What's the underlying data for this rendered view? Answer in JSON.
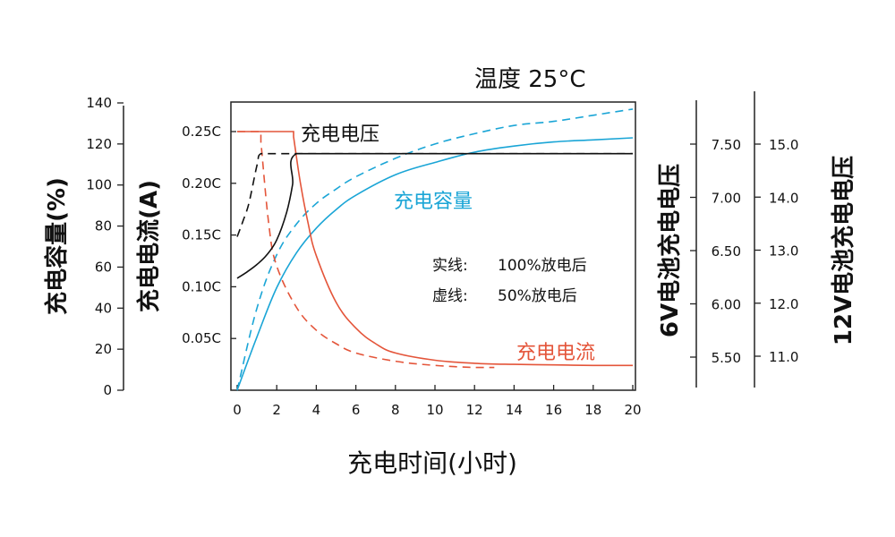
{
  "chart_data": {
    "type": "line",
    "title": "温度 25°C",
    "xlabel": "充电时间(小时)",
    "xlim": [
      0,
      20
    ],
    "x_ticks": [
      "0",
      "2",
      "4",
      "6",
      "8",
      "10",
      "12",
      "14",
      "16",
      "18",
      "20"
    ],
    "y_axes": {
      "capacity": {
        "label": "充电容量(%)",
        "ylim": [
          0,
          140
        ],
        "ticks": [
          "140",
          "120",
          "100",
          "80",
          "60",
          "40",
          "20",
          "0"
        ]
      },
      "current": {
        "label": "充电电流(A)",
        "ticks": [
          "0.25C",
          "0.20C",
          "0.15C",
          "0.10C",
          "0.05C"
        ]
      },
      "voltage_6v": {
        "label": "6V电池充电电压",
        "ticks": [
          "7.50",
          "7.00",
          "6.50",
          "6.00",
          "5.50"
        ]
      },
      "voltage_12v": {
        "label": "12V电池充电电压",
        "ticks": [
          "15.0",
          "14.0",
          "13.0",
          "12.0",
          "11.0"
        ]
      }
    },
    "legend": {
      "solid": "实线:",
      "solid_desc": "100%放电后",
      "dashed": "虚线:",
      "dashed_desc": "50%放电后"
    },
    "annotations": {
      "voltage": "充电电压",
      "capacity": "充电容量",
      "current": "充电电流"
    },
    "colors": {
      "voltage": "#111111",
      "capacity": "#1aa5d6",
      "current": "#e4553a"
    },
    "series": [
      {
        "id": "capacity-solid",
        "axis": "capacity",
        "style": "solid",
        "x": [
          0,
          1,
          2,
          3,
          4,
          5,
          6,
          8,
          10,
          12,
          14,
          16,
          18,
          20
        ],
        "y": [
          0,
          26,
          50,
          67,
          79,
          88,
          95,
          105,
          111,
          116,
          119,
          121,
          122,
          123
        ]
      },
      {
        "id": "capacity-dashed",
        "axis": "capacity",
        "style": "dashed",
        "x": [
          0,
          1,
          2,
          3,
          4,
          5,
          6,
          8,
          10,
          12,
          14,
          16,
          18,
          20
        ],
        "y": [
          0,
          40,
          66,
          81,
          91,
          98,
          104,
          113,
          120,
          125,
          129,
          131,
          134,
          137
        ]
      },
      {
        "id": "current-solid",
        "axis": "current",
        "style": "solid",
        "x": [
          0,
          2.85,
          2.85,
          3.2,
          3.6,
          4,
          5,
          6,
          7,
          8,
          10,
          12,
          14,
          16,
          18,
          20
        ],
        "y": [
          0.25,
          0.25,
          0.245,
          0.2,
          0.16,
          0.13,
          0.085,
          0.06,
          0.045,
          0.036,
          0.029,
          0.026,
          0.025,
          0.0245,
          0.024,
          0.024
        ]
      },
      {
        "id": "current-dashed",
        "axis": "current",
        "style": "dashed",
        "x": [
          0,
          1.2,
          1.2,
          1.6,
          2,
          3,
          4,
          5,
          6,
          8,
          10,
          12,
          13
        ],
        "y": [
          0.25,
          0.25,
          0.24,
          0.16,
          0.12,
          0.08,
          0.058,
          0.045,
          0.036,
          0.028,
          0.024,
          0.022,
          0.022
        ]
      },
      {
        "id": "voltage-solid",
        "axis": "voltage_6v",
        "style": "solid",
        "x": [
          0,
          0.5,
          1,
          1.5,
          2,
          2.5,
          2.8,
          3,
          6,
          10,
          14,
          20
        ],
        "y": [
          6.24,
          6.3,
          6.37,
          6.46,
          6.6,
          6.86,
          7.12,
          7.41,
          7.41,
          7.41,
          7.41,
          7.41
        ]
      },
      {
        "id": "voltage-dashed",
        "axis": "voltage_6v",
        "style": "dashed",
        "x": [
          0,
          0.3,
          0.6,
          1,
          1.2,
          2,
          4,
          8,
          12,
          20
        ],
        "y": [
          6.63,
          6.78,
          6.95,
          7.3,
          7.41,
          7.41,
          7.41,
          7.41,
          7.41,
          7.41
        ]
      }
    ]
  }
}
